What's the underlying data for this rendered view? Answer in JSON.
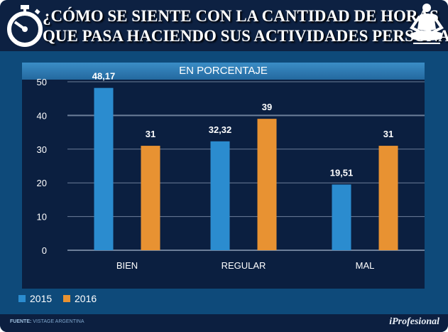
{
  "header": {
    "title_line1": "¿CÓMO SE SIENTE CON LA CANTIDAD DE HORAS",
    "title_line2": "QUE PASA HACIENDO SUS ACTIVIDADES PERSONALES?",
    "left_icon": "stopwatch-icon",
    "right_icon": "meditation-icon"
  },
  "chart_data": {
    "type": "bar",
    "subtitle": "EN PORCENTAJE",
    "categories": [
      "BIEN",
      "REGULAR",
      "MAL"
    ],
    "series": [
      {
        "name": "2015",
        "values": [
          48.17,
          32.32,
          19.51
        ],
        "labels": [
          "48,17",
          "32,32",
          "19,51"
        ],
        "color": "#2b8ccf"
      },
      {
        "name": "2016",
        "values": [
          31,
          39,
          31
        ],
        "labels": [
          "31",
          "39",
          "31"
        ],
        "color": "#e89232"
      }
    ],
    "yticks": [
      "0",
      "10",
      "20",
      "30",
      "40",
      "50"
    ],
    "ylim": [
      0,
      50
    ],
    "grid": true,
    "legend": "bottom-left"
  },
  "footer": {
    "source_label": "FUENTE:",
    "source": "VISTAGE ARGENTINA",
    "brand": "iProfesional"
  }
}
